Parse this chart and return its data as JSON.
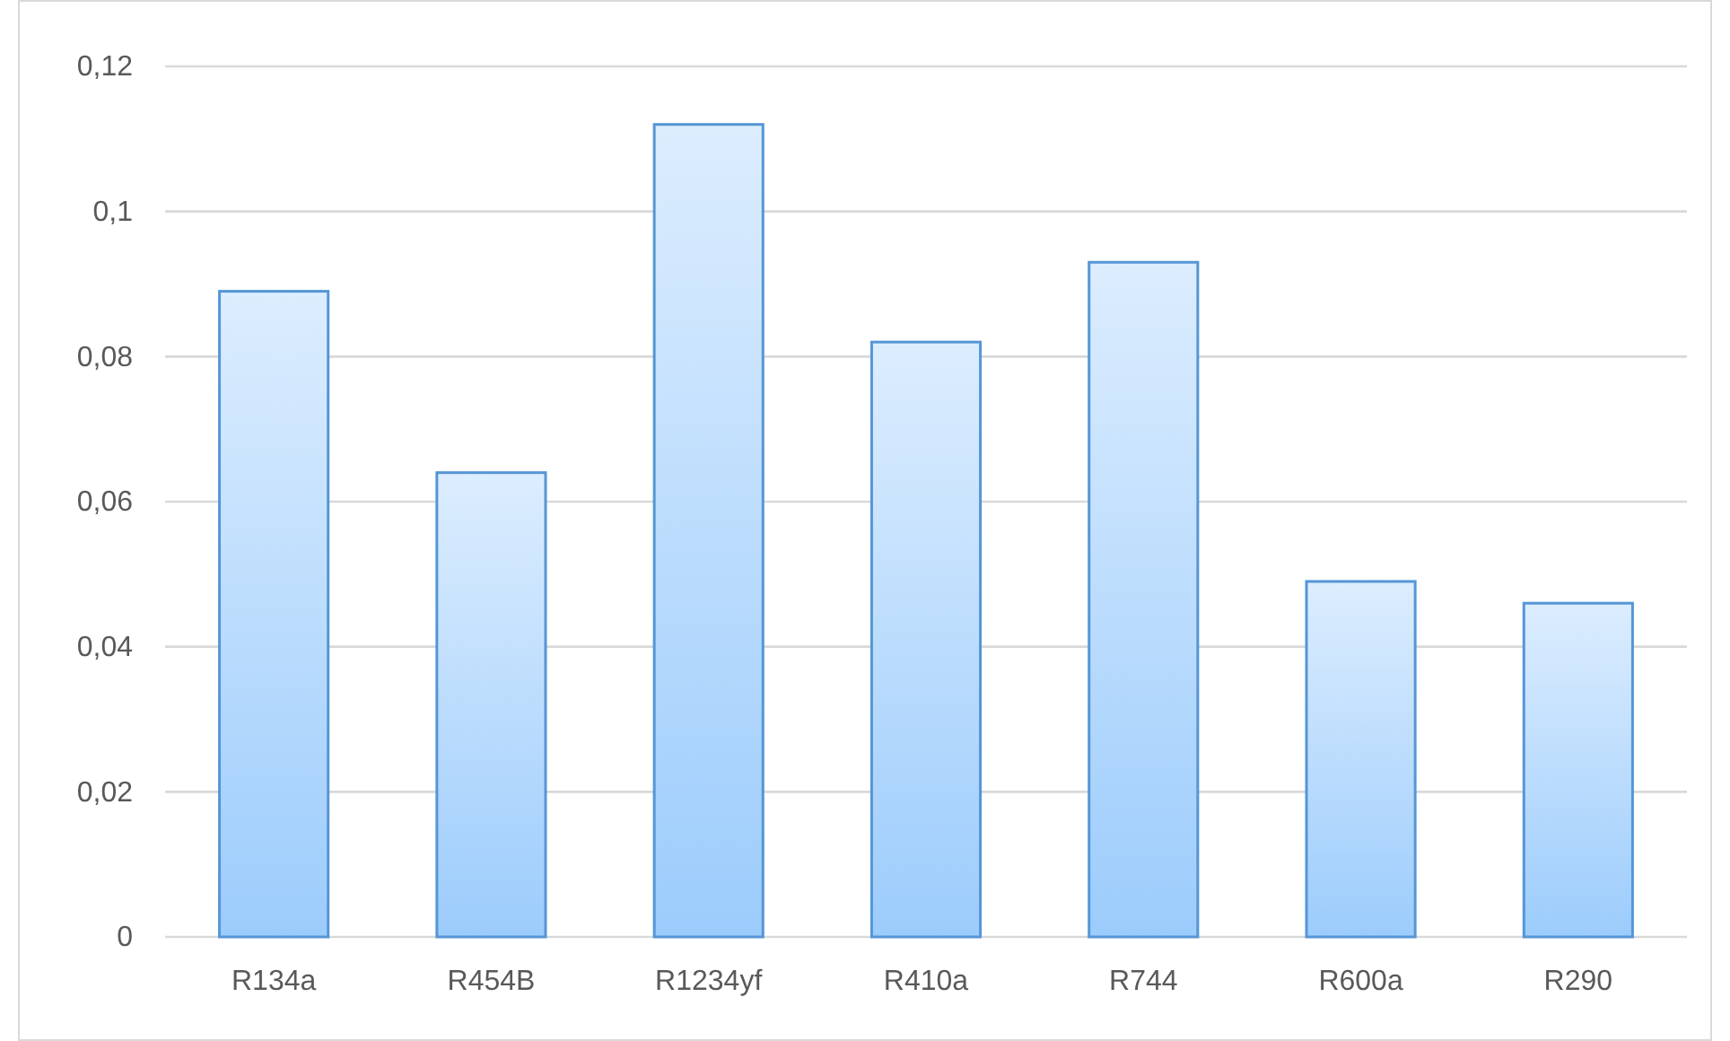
{
  "chart_data": {
    "type": "bar",
    "categories": [
      "R134a",
      "R454B",
      "R1234yf",
      "R410a",
      "R744",
      "R600a",
      "R290"
    ],
    "values": [
      0.089,
      0.064,
      0.112,
      0.082,
      0.093,
      0.049,
      0.046
    ],
    "color": "#5596d6",
    "ylim": [
      0,
      0.12
    ],
    "yticks": [
      {
        "value": 0,
        "label": "0"
      },
      {
        "value": 0.02,
        "label": "0,02"
      },
      {
        "value": 0.04,
        "label": "0,04"
      },
      {
        "value": 0.06,
        "label": "0,06"
      },
      {
        "value": 0.08,
        "label": "0,08"
      },
      {
        "value": 0.1,
        "label": "0,1"
      },
      {
        "value": 0.12,
        "label": "0,12"
      }
    ],
    "grid": "y"
  }
}
